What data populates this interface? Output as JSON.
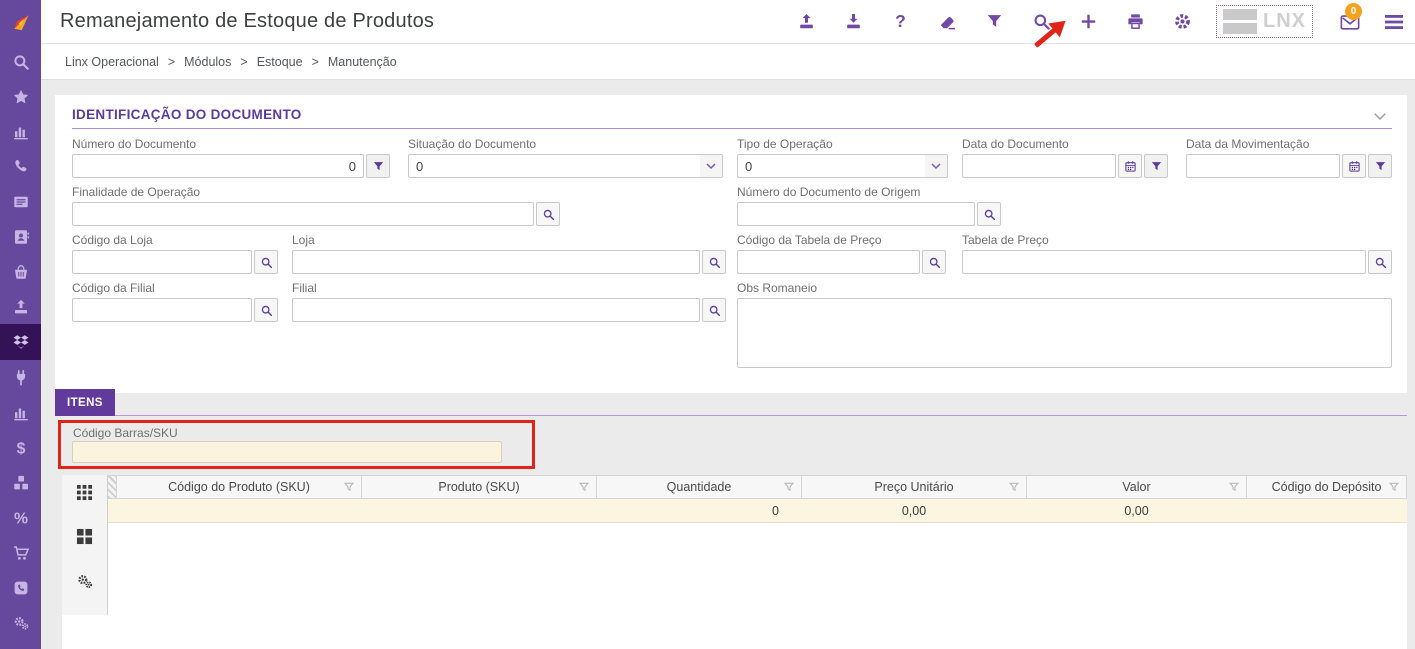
{
  "header": {
    "title": "Remanejamento de Estoque de Produtos",
    "toolbar": [
      {
        "icon": "upload-icon"
      },
      {
        "icon": "download-icon"
      },
      {
        "icon": "help-icon"
      },
      {
        "icon": "eraser-icon"
      },
      {
        "icon": "filter-icon"
      },
      {
        "icon": "search-icon",
        "annotated": true
      },
      {
        "icon": "plus-icon"
      },
      {
        "icon": "print-icon"
      },
      {
        "icon": "gear-icon"
      }
    ],
    "lnx_logo_text": "LNX",
    "mail_badge": "0"
  },
  "breadcrumb": [
    "Linx Operacional",
    "Módulos",
    "Estoque",
    "Manutenção"
  ],
  "sidebar": {
    "items": [
      {
        "icon": "search-icon",
        "active": false
      },
      {
        "icon": "star-icon",
        "active": false
      },
      {
        "icon": "bar-chart-icon",
        "active": false
      },
      {
        "icon": "phone-icon",
        "active": false
      },
      {
        "icon": "list-card-icon",
        "active": false
      },
      {
        "icon": "address-book-icon",
        "active": false
      },
      {
        "icon": "basket-icon",
        "active": false
      },
      {
        "icon": "upload-icon",
        "active": false
      },
      {
        "icon": "dropbox-icon",
        "active": true
      },
      {
        "icon": "plug-icon",
        "active": false
      },
      {
        "icon": "bar-chart-icon",
        "active": false
      },
      {
        "icon": "dollar-icon",
        "active": false
      },
      {
        "icon": "cubes-icon",
        "active": false
      },
      {
        "icon": "percent-icon",
        "active": false
      },
      {
        "icon": "cart-icon",
        "active": false
      },
      {
        "icon": "phone-app-icon",
        "active": false
      },
      {
        "icon": "gears-icon",
        "active": false
      }
    ]
  },
  "identification": {
    "title": "IDENTIFICAÇÃO DO DOCUMENTO",
    "fields": {
      "numero_documento": {
        "label": "Número do Documento",
        "value": "0"
      },
      "situacao_documento": {
        "label": "Situação do Documento",
        "value": "0"
      },
      "tipo_operacao": {
        "label": "Tipo de Operação",
        "value": "0"
      },
      "data_documento": {
        "label": "Data do Documento",
        "value": ""
      },
      "data_movimentacao": {
        "label": "Data da Movimentação",
        "value": ""
      },
      "finalidade_operacao": {
        "label": "Finalidade de Operação",
        "value": ""
      },
      "numero_documento_origem": {
        "label": "Número do Documento de Origem",
        "value": ""
      },
      "codigo_loja": {
        "label": "Código da Loja",
        "value": ""
      },
      "loja": {
        "label": "Loja",
        "value": ""
      },
      "codigo_tabela_preco": {
        "label": "Código da Tabela de Preço",
        "value": ""
      },
      "tabela_preco": {
        "label": "Tabela de Preço",
        "value": ""
      },
      "codigo_filial": {
        "label": "Código da Filial",
        "value": ""
      },
      "filial": {
        "label": "Filial",
        "value": ""
      },
      "obs_romaneio": {
        "label": "Obs Romaneio",
        "value": ""
      }
    }
  },
  "itens": {
    "tab_label": "ITENS",
    "barcode_label": "Código Barras/SKU",
    "barcode_value": ""
  },
  "grid": {
    "columns": [
      "Código do Produto (SKU)",
      "Produto (SKU)",
      "Quantidade",
      "Preço Unitário",
      "Valor",
      "Código do Depósito"
    ],
    "row_values": [
      "",
      "",
      "0",
      "0,00",
      "0,00",
      ""
    ]
  },
  "annotations": {
    "arrow_points_to": "search-icon",
    "rectangle_highlights": "barcode-input",
    "color": "#e02417"
  },
  "colors": {
    "sidebar": "#66489c",
    "sidebar_active": "#351257",
    "accent_purple": "#6a3fa0",
    "cream_row": "#fcf5e0",
    "badge_orange": "#f5a31d",
    "annotation_red": "#e02417"
  }
}
